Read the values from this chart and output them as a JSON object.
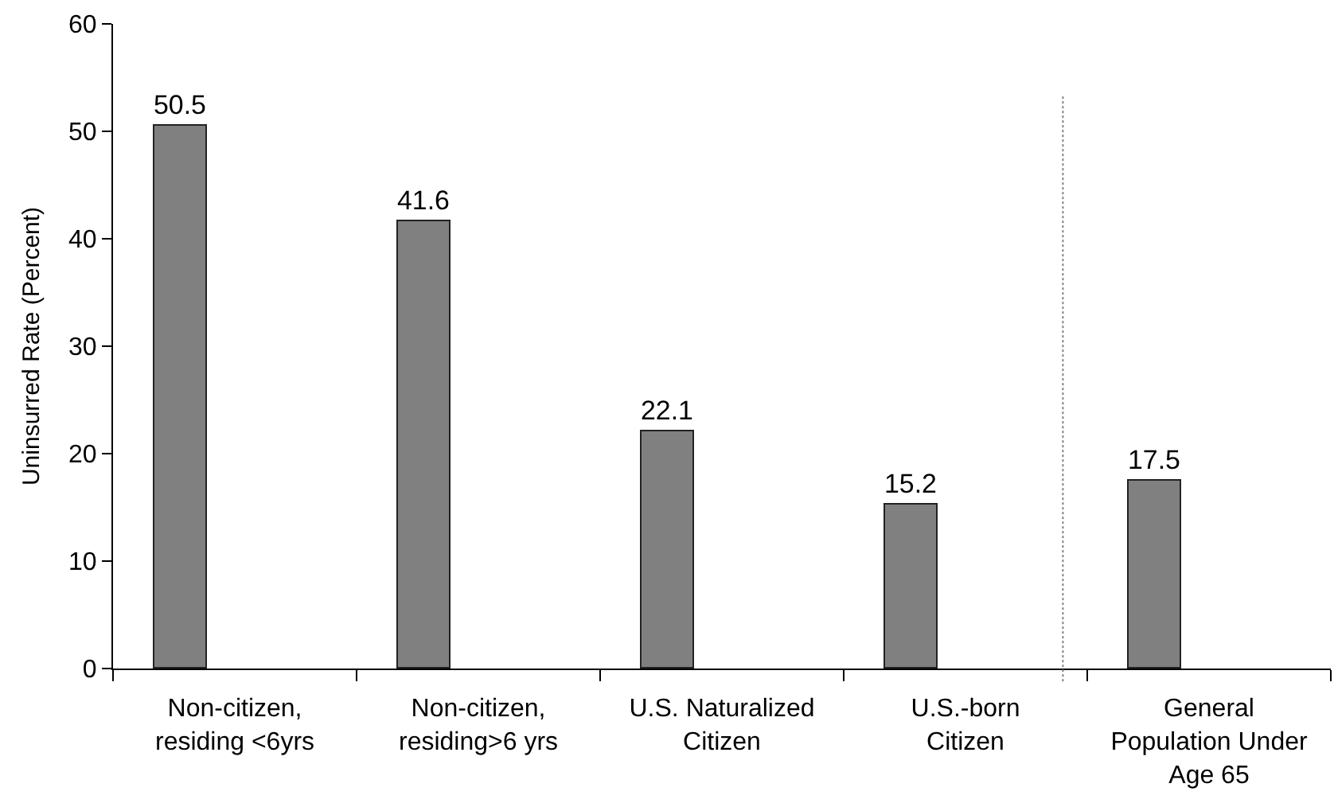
{
  "chart_data": {
    "type": "bar",
    "ylabel": "Uninsurred Rate (Percent)",
    "categories": [
      "Non-citizen, residing <6yrs",
      "Non-citizen, residing>6 yrs",
      "U.S. Naturalized Citizen",
      "U.S.-born Citizen",
      "General Population Under Age 65"
    ],
    "values": [
      50.5,
      41.6,
      22.1,
      15.2,
      17.5
    ],
    "color": "#808080",
    "data_labels": true,
    "ylim": [
      0,
      60
    ],
    "yticks": [
      0,
      10,
      20,
      30,
      40,
      50,
      60
    ]
  }
}
